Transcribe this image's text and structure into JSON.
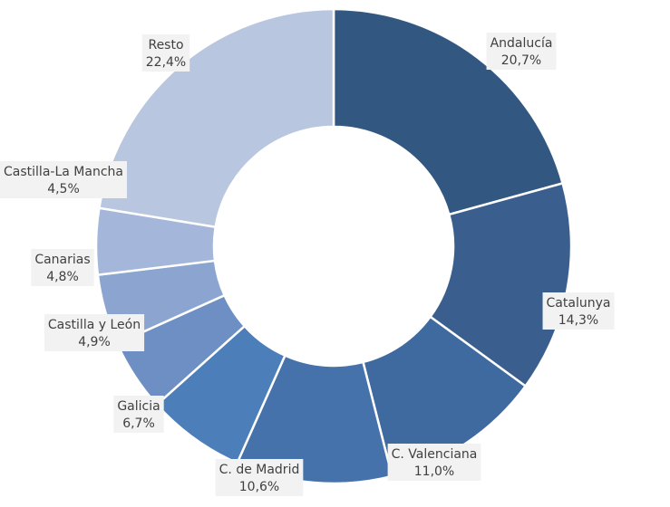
{
  "chart_data": {
    "type": "pie",
    "variant": "donut",
    "title": "",
    "slices": [
      {
        "label": "Andalucía",
        "value": 20.7,
        "value_label": "20,7%",
        "color": "#325882"
      },
      {
        "label": "Catalunya",
        "value": 14.3,
        "value_label": "14,3%",
        "color": "#3a5f8e"
      },
      {
        "label": "C. Valenciana",
        "value": 11.0,
        "value_label": "11,0%",
        "color": "#3e6aa0"
      },
      {
        "label": "C. de Madrid",
        "value": 10.6,
        "value_label": "10,6%",
        "color": "#4672ab"
      },
      {
        "label": "Galicia",
        "value": 6.7,
        "value_label": "6,7%",
        "color": "#4c7eba"
      },
      {
        "label": "Castilla y León",
        "value": 4.9,
        "value_label": "4,9%",
        "color": "#6d8fc4"
      },
      {
        "label": "Canarias",
        "value": 4.8,
        "value_label": "4,8%",
        "color": "#8ba5d0"
      },
      {
        "label": "Castilla-La Mancha",
        "value": 4.5,
        "value_label": "4,5%",
        "color": "#a4b6da"
      },
      {
        "label": "Resto",
        "value": 22.4,
        "value_label": "22,4%",
        "color": "#b9c6e0"
      }
    ]
  }
}
